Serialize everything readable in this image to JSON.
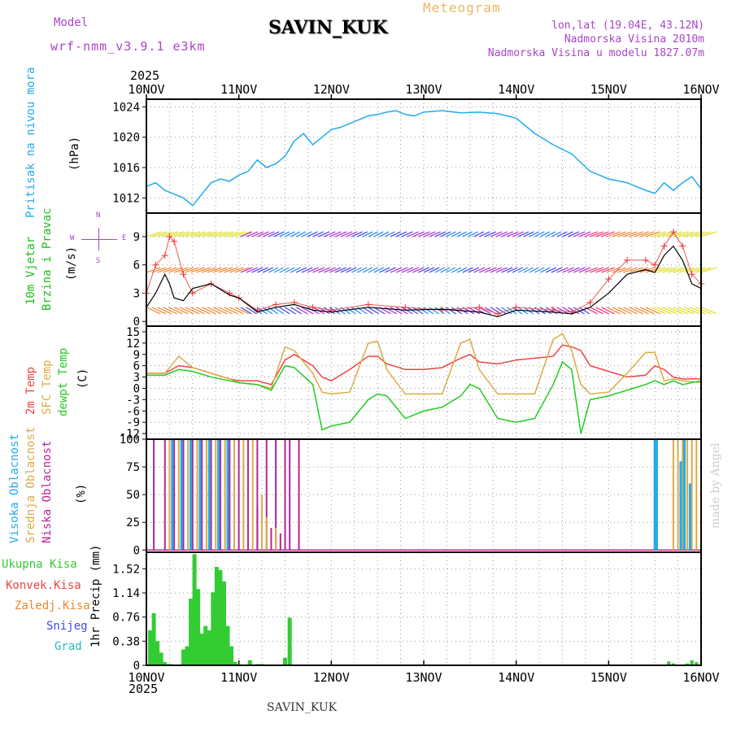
{
  "header": {
    "model_label": "Model",
    "model_name": "wrf-nmm_v3.9.1 e3km",
    "station": "SAVIN_KUK",
    "chart_title": "Meteogram",
    "lonlat": "lon,lat (19.04E, 43.12N)",
    "altitude": "Nadmorska Visina 2010m",
    "model_altitude": "Nadmorska Visina u modelu 1827.07m",
    "year_top": "2025",
    "year_bottom": "2025",
    "footer_station": "SAVIN_KUK",
    "credit": "made by Angel"
  },
  "colors": {
    "pressure": "#22aaee",
    "wind_label": "#22bb22",
    "temp2m": "#ee4444",
    "tempSfc": "#ddaa44",
    "dewpt": "#22cc22",
    "cloud_high": "#22aaee",
    "cloud_mid": "#ddaa44",
    "cloud_low": "#bb2299",
    "precip_total": "#33cc33",
    "precip_conv": "#ee4444",
    "precip_frz": "#ee8833",
    "precip_snow": "#4444ee",
    "precip_hail": "#22bbbb",
    "header_purple": "#aa44cc",
    "header_orange": "#e8b860"
  },
  "chart_data": [
    {
      "type": "line",
      "name": "pressure",
      "ylabel_1": "Pritisak na nivou mora",
      "ylabel_2": "(hPa)",
      "yticks": [
        "1024",
        "1020",
        "1016",
        "1012"
      ],
      "ylim": [
        1010,
        1025
      ],
      "x_days": [
        0,
        0.1,
        0.2,
        0.3,
        0.4,
        0.5,
        0.6,
        0.7,
        0.8,
        0.9,
        1.0,
        1.1,
        1.2,
        1.3,
        1.4,
        1.5,
        1.6,
        1.7,
        1.8,
        1.9,
        2.0,
        2.1,
        2.2,
        2.3,
        2.4,
        2.5,
        2.6,
        2.7,
        2.8,
        2.9,
        3.0,
        3.2,
        3.4,
        3.6,
        3.8,
        4.0,
        4.2,
        4.4,
        4.6,
        4.8,
        5.0,
        5.2,
        5.4,
        5.5,
        5.6,
        5.7,
        5.8,
        5.9,
        6.0
      ],
      "values": [
        1013.5,
        1014,
        1013,
        1012.5,
        1012,
        1011,
        1012.5,
        1014,
        1014.5,
        1014.2,
        1015,
        1015.5,
        1017,
        1016,
        1016.5,
        1017.5,
        1019.5,
        1020.5,
        1019,
        1020,
        1021,
        1021.3,
        1021.8,
        1022.3,
        1022.8,
        1023,
        1023.3,
        1023.5,
        1023,
        1022.8,
        1023.3,
        1023.5,
        1023.2,
        1023.3,
        1023.1,
        1022.5,
        1020.5,
        1019,
        1017.8,
        1015.5,
        1014.5,
        1014,
        1013,
        1012.6,
        1014,
        1013,
        1014,
        1014.8,
        1013.2
      ]
    },
    {
      "type": "line",
      "name": "wind",
      "ylabel_1": "10m Vjetar",
      "ylabel_2": "Brzina i Pravac",
      "ylabel_3": "(m/s)",
      "yticks": [
        "9",
        "6",
        "3",
        "0"
      ],
      "ylim": [
        -0.5,
        11.5
      ],
      "compass": {
        "n": "N",
        "s": "S",
        "e": "E",
        "w": "W"
      },
      "x_days": [
        0,
        0.1,
        0.2,
        0.25,
        0.3,
        0.4,
        0.5,
        0.7,
        0.9,
        1.0,
        1.2,
        1.4,
        1.6,
        1.8,
        2.0,
        2.4,
        2.8,
        3.2,
        3.6,
        3.8,
        4.0,
        4.4,
        4.6,
        4.8,
        5.0,
        5.2,
        5.4,
        5.5,
        5.6,
        5.7,
        5.8,
        5.9,
        6.0
      ],
      "values": [
        1.5,
        3.0,
        5.0,
        4.0,
        2.5,
        2.2,
        3.5,
        4.0,
        2.8,
        2.5,
        1.0,
        1.5,
        1.8,
        1.2,
        1.0,
        1.5,
        1.2,
        1.3,
        1.0,
        0.5,
        1.2,
        1.0,
        0.8,
        1.5,
        3.0,
        5.0,
        5.5,
        5.2,
        7.0,
        8.0,
        6.5,
        4.0,
        3.5
      ],
      "gust_values": [
        3.0,
        6.0,
        7.0,
        9.0,
        8.5,
        5.0,
        3.0,
        4.0,
        3.0,
        2.5,
        1.2,
        1.8,
        2.0,
        1.5,
        1.2,
        1.8,
        1.5,
        1.2,
        1.5,
        0.8,
        1.5,
        1.2,
        1.0,
        2.0,
        4.5,
        6.5,
        6.5,
        6.0,
        8.0,
        9.5,
        8.0,
        5.0,
        4.0
      ],
      "barb_rows": [
        9,
        5.2,
        1.5
      ]
    },
    {
      "type": "line",
      "name": "temperature",
      "ylabel_1": "2m Temp",
      "ylabel_2": "SFC Temp",
      "ylabel_3": "dewpt Temp",
      "ylabel_4": "(C)",
      "yticks": [
        "15",
        "12",
        "9",
        "6",
        "3",
        "0",
        "-3",
        "-6",
        "-9",
        "-12"
      ],
      "ylim": [
        -13.5,
        16.5
      ],
      "x_days": [
        0,
        0.2,
        0.35,
        0.5,
        0.7,
        0.9,
        1.0,
        1.2,
        1.35,
        1.5,
        1.6,
        1.8,
        1.9,
        2.0,
        2.2,
        2.4,
        2.5,
        2.6,
        2.8,
        3.0,
        3.2,
        3.4,
        3.5,
        3.6,
        3.8,
        4.0,
        4.2,
        4.4,
        4.5,
        4.6,
        4.7,
        4.8,
        5.0,
        5.2,
        5.4,
        5.5,
        5.6,
        5.7,
        5.8,
        6.0
      ],
      "series": [
        {
          "name": "2m Temp",
          "values": [
            4,
            4,
            6,
            5.5,
            4,
            2.5,
            2,
            2,
            1,
            7.5,
            9,
            6,
            3,
            2,
            5,
            8.5,
            8.5,
            6.5,
            5,
            5,
            5.5,
            8,
            9,
            7,
            6.5,
            7.5,
            8,
            8.5,
            11.5,
            11,
            10,
            6,
            4.5,
            3,
            3.5,
            6,
            5,
            3,
            2.5,
            2.5
          ]
        },
        {
          "name": "SFC Temp",
          "values": [
            4,
            4,
            8.5,
            5.5,
            4,
            2.5,
            1.5,
            1,
            0,
            11,
            10,
            4,
            -1,
            -1.5,
            -1,
            12,
            12.5,
            5,
            -1.5,
            -1.5,
            -1.5,
            12,
            13,
            5,
            -1.5,
            -1.5,
            -1.5,
            13,
            14.5,
            10,
            1,
            -1.5,
            -1,
            4,
            9.5,
            9.5,
            2,
            2.5,
            2,
            1.5
          ]
        },
        {
          "name": "dewpt Temp",
          "values": [
            3.5,
            3.5,
            5,
            4.5,
            3,
            2,
            1.5,
            1,
            -0.5,
            6,
            5.5,
            1,
            -11,
            -10,
            -9,
            -3,
            -1.5,
            -2,
            -8,
            -6,
            -5,
            -2,
            1,
            0,
            -8,
            -9,
            -8,
            1,
            7,
            5,
            -12,
            -3,
            -2,
            -0.5,
            1,
            2,
            1,
            2,
            1,
            2
          ]
        }
      ]
    },
    {
      "type": "bar",
      "name": "clouds",
      "ylabel_1": "Visoka Oblacnost",
      "ylabel_2": "Srednja Oblacnost",
      "ylabel_3": "Niska Oblacnost",
      "ylabel_4": "(%)",
      "yticks": [
        "100",
        "75",
        "50",
        "25",
        "0"
      ],
      "ylim": [
        0,
        100
      ],
      "low_bars": [
        [
          0.08,
          100
        ],
        [
          0.2,
          100
        ],
        [
          0.3,
          100
        ],
        [
          0.4,
          100
        ],
        [
          0.5,
          100
        ],
        [
          0.6,
          100
        ],
        [
          0.7,
          100
        ],
        [
          0.8,
          100
        ],
        [
          0.9,
          100
        ],
        [
          1.0,
          100
        ],
        [
          1.1,
          100
        ],
        [
          1.2,
          100
        ],
        [
          1.3,
          100
        ],
        [
          1.4,
          100
        ],
        [
          1.5,
          100
        ],
        [
          1.55,
          100
        ],
        [
          1.65,
          100
        ],
        [
          1.2,
          40
        ],
        [
          1.35,
          20
        ],
        [
          1.45,
          15
        ]
      ],
      "mid_bars": [
        [
          0.25,
          100
        ],
        [
          0.35,
          100
        ],
        [
          0.45,
          100
        ],
        [
          0.55,
          100
        ],
        [
          0.65,
          100
        ],
        [
          0.75,
          100
        ],
        [
          0.85,
          100
        ],
        [
          0.95,
          100
        ],
        [
          1.05,
          100
        ],
        [
          1.15,
          100
        ],
        [
          1.25,
          50
        ],
        [
          1.3,
          30
        ],
        [
          1.4,
          20
        ],
        [
          5.7,
          100
        ],
        [
          5.75,
          100
        ],
        [
          5.8,
          100
        ],
        [
          5.85,
          100
        ],
        [
          5.9,
          100
        ],
        [
          5.95,
          100
        ],
        [
          6.0,
          100
        ]
      ],
      "high_bars": [
        [
          0.28,
          100
        ],
        [
          0.38,
          100
        ],
        [
          0.48,
          100
        ],
        [
          0.58,
          100
        ],
        [
          0.68,
          100
        ],
        [
          0.78,
          100
        ],
        [
          0.88,
          100
        ],
        [
          5.5,
          100
        ],
        [
          5.52,
          100
        ],
        [
          5.78,
          80
        ],
        [
          5.82,
          100
        ],
        [
          5.88,
          60
        ]
      ]
    },
    {
      "type": "bar",
      "name": "precipitation",
      "ylabel_1": "1hr Precip (mm)",
      "legend": [
        "Ukupna Kisa",
        "Konvek.Kisa",
        "Zaledj.Kisa",
        "Snijeg",
        "Grad"
      ],
      "yticks": [
        "1.52",
        "1.14",
        "0.76",
        "0.38",
        "0"
      ],
      "ylim": [
        0,
        1.78
      ],
      "x_days": [
        0.04,
        0.08,
        0.12,
        0.16,
        0.2,
        0.25,
        0.4,
        0.44,
        0.48,
        0.52,
        0.56,
        0.6,
        0.64,
        0.68,
        0.72,
        0.76,
        0.8,
        0.84,
        0.88,
        0.92,
        0.96,
        1.0,
        1.12,
        1.2,
        1.25,
        1.5,
        1.55
      ],
      "values": [
        0.55,
        0.82,
        0.38,
        0.2,
        0.05,
        0.02,
        0.25,
        0.3,
        1.05,
        1.75,
        1.2,
        0.5,
        0.62,
        0.55,
        1.15,
        1.55,
        1.5,
        1.32,
        0.62,
        0.3,
        0.05,
        0.02,
        0.08,
        0.02,
        0.02,
        0.12,
        0.75
      ]
    }
  ],
  "x_axis": {
    "labels": [
      "10NOV",
      "11NOV",
      "12NOV",
      "13NOV",
      "14NOV",
      "15NOV",
      "16NOV"
    ]
  }
}
